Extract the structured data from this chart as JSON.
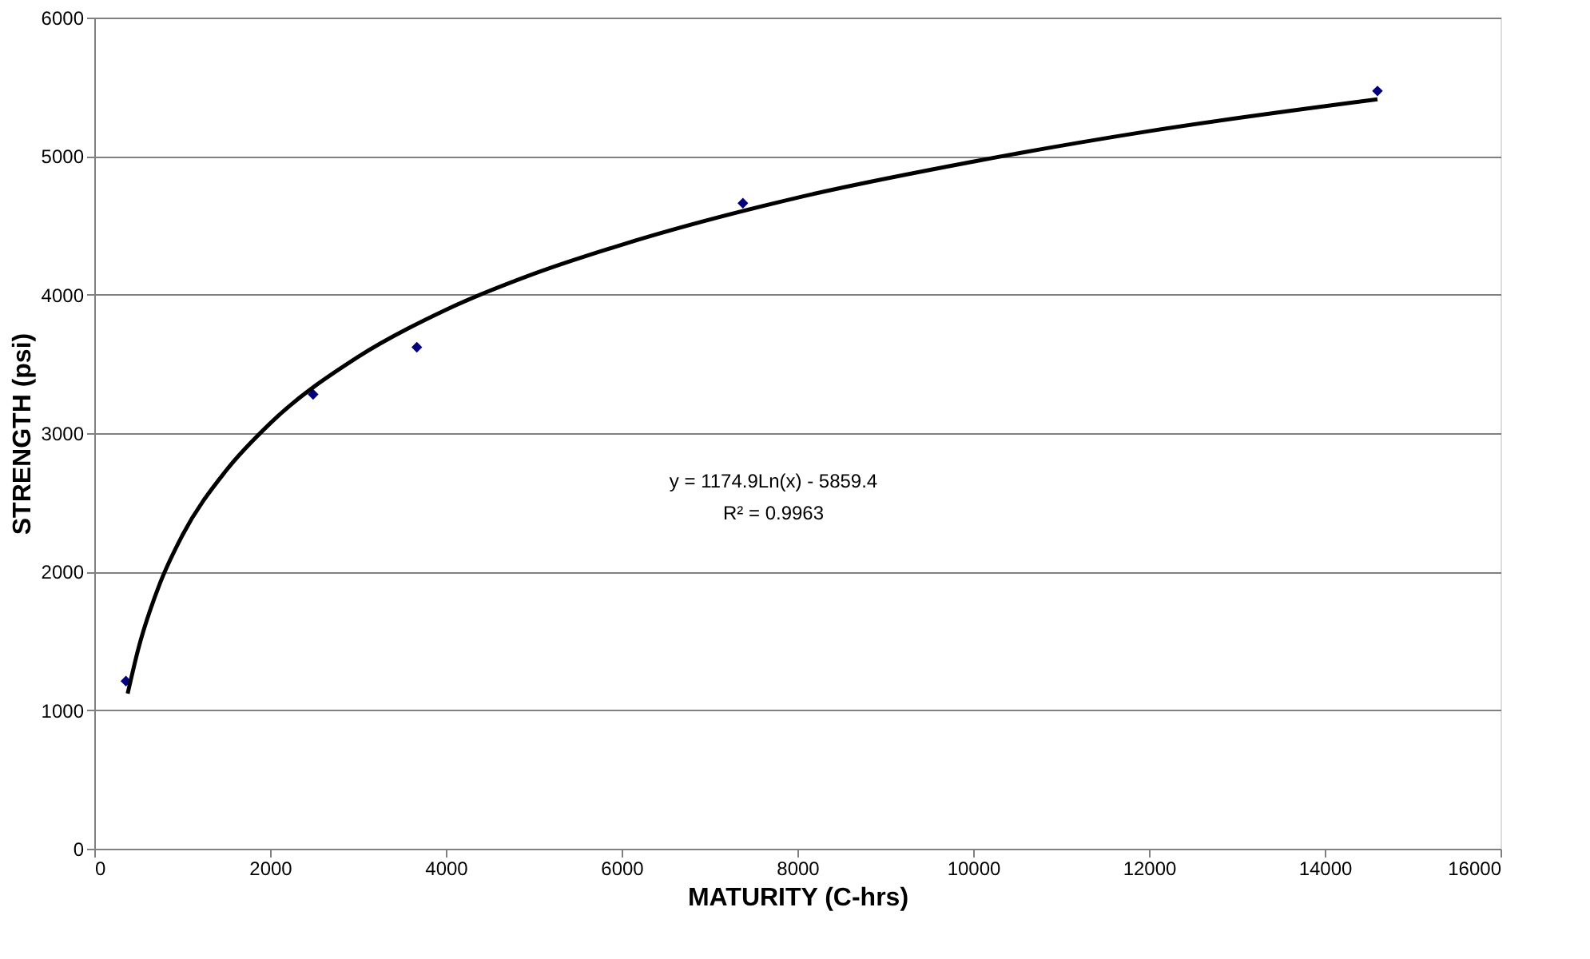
{
  "chart_data": {
    "type": "scatter",
    "xlabel": "MATURITY (C-hrs)",
    "ylabel": "STRENGTH (psi)",
    "xlim": [
      0,
      16000
    ],
    "xticks": [
      0,
      2000,
      4000,
      6000,
      8000,
      10000,
      12000,
      14000,
      16000
    ],
    "ylim": [
      0,
      6000
    ],
    "yticks": [
      0,
      1000,
      2000,
      3000,
      4000,
      5000,
      6000
    ],
    "grid": "y",
    "series": [
      {
        "marker": "diamond",
        "color": "#000080",
        "x": [
          360,
          2490,
          3670,
          7380,
          14600
        ],
        "values": [
          1210,
          3280,
          3620,
          4660,
          5470
        ]
      },
      {
        "type": "line",
        "line_style": "solid",
        "marker": "none",
        "color": "#000000",
        "x": [
          380,
          500,
          750,
          1000,
          1500,
          2000,
          3000,
          4000,
          5000,
          6000,
          8000,
          10000,
          12000,
          14600
        ],
        "values": [
          1120,
          1440,
          1920,
          2260,
          2730,
          3070,
          3550,
          3890,
          4150,
          4360,
          4700,
          4960,
          5180,
          5410
        ]
      }
    ],
    "annotations": [
      "y = 1174.9Ln(x) - 5859.4",
      "R² = 0.9963"
    ]
  }
}
